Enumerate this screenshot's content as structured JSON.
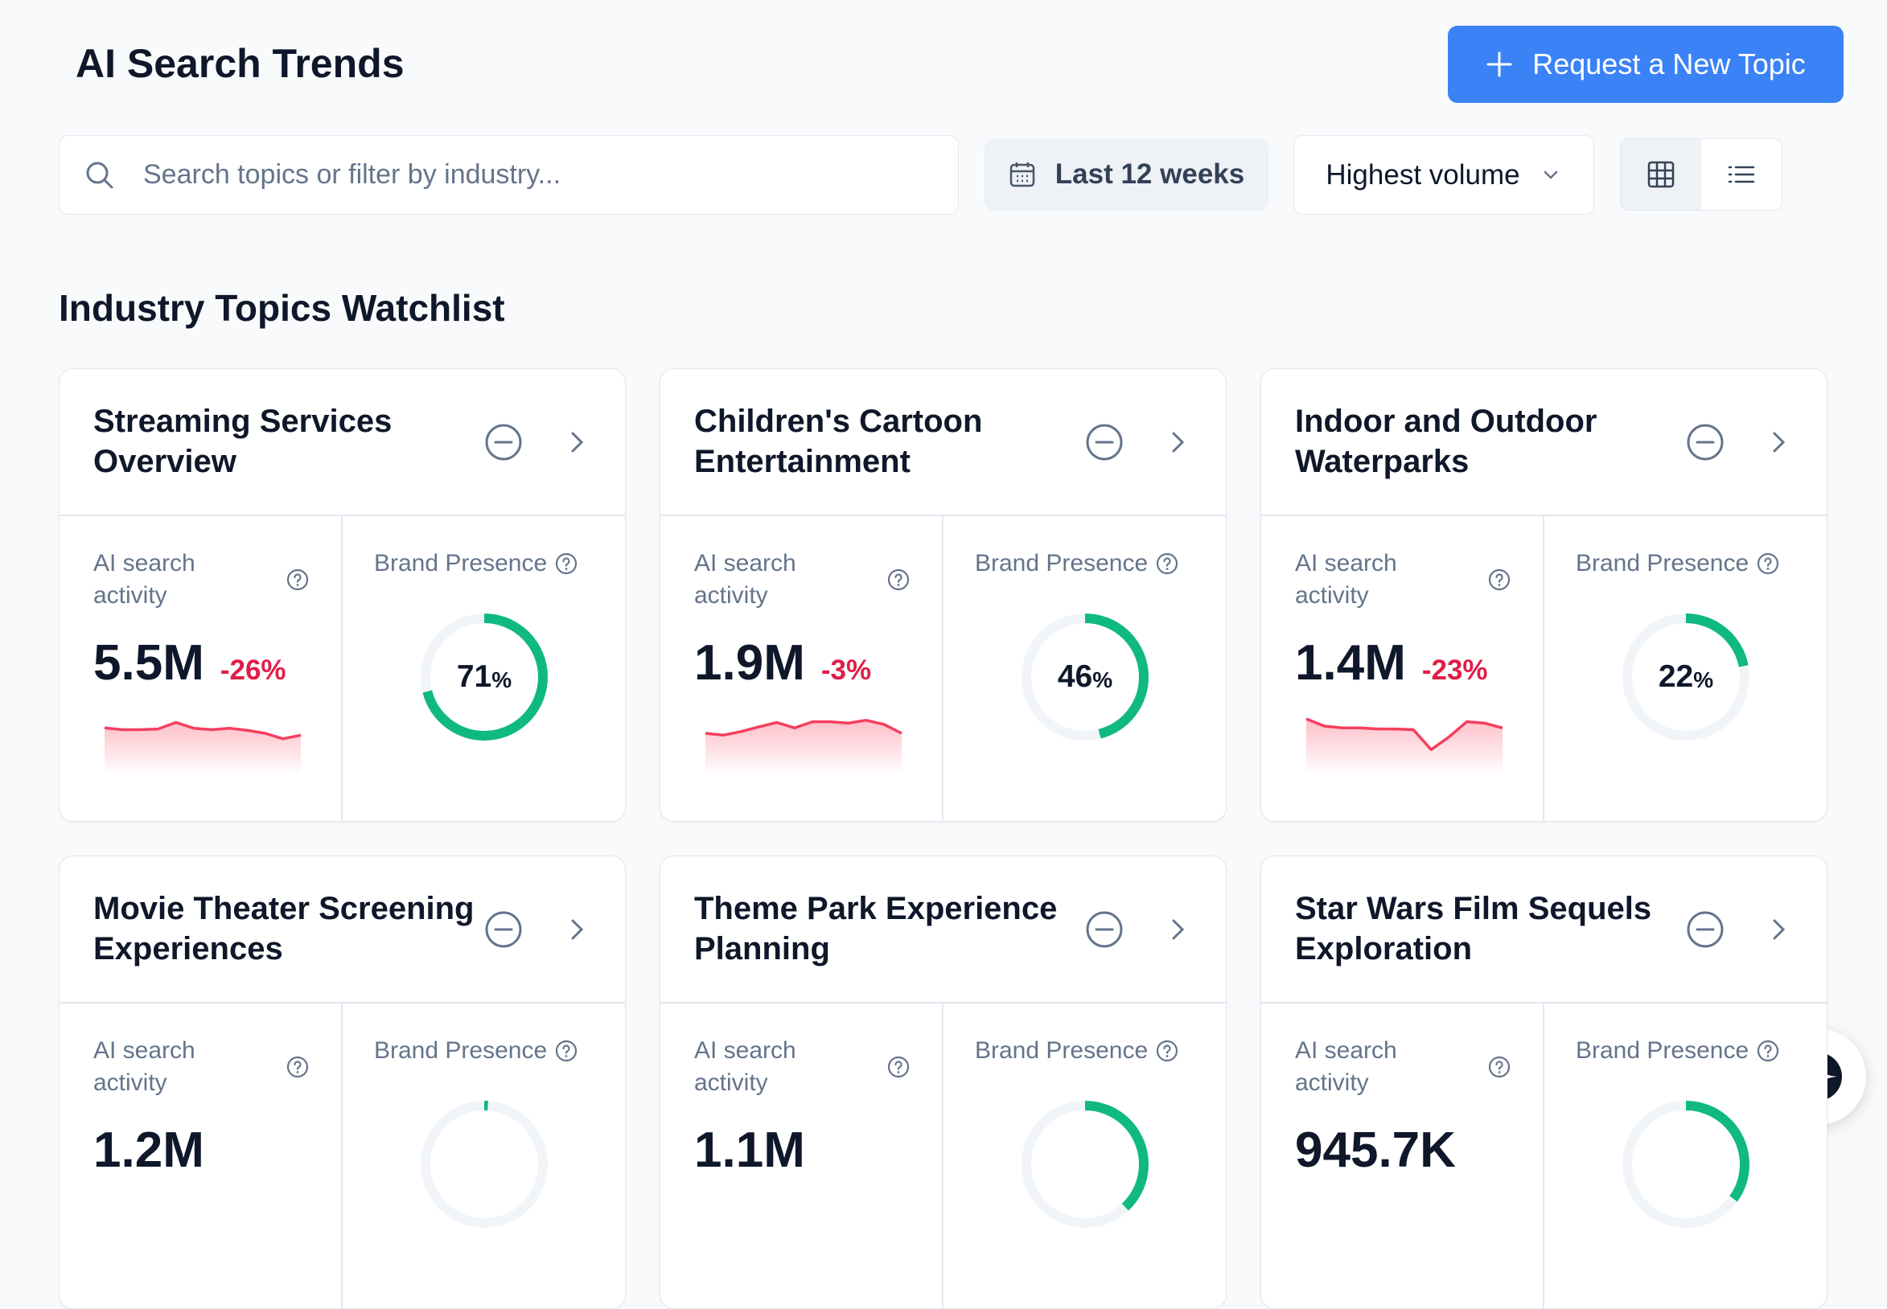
{
  "header": {
    "title": "AI Search Trends",
    "button": "Request a New Topic"
  },
  "toolbar": {
    "search_placeholder": "Search topics or filter by industry...",
    "date_range": "Last 12 weeks",
    "sort": "Highest volume"
  },
  "section_title": "Industry Topics Watchlist",
  "cards": [
    {
      "title": "Streaming Services Overview",
      "activity_label": "AI search activity",
      "volume": "5.5M",
      "change": "-26%",
      "trend": [
        75,
        70,
        70,
        72,
        90,
        74,
        70,
        74,
        68,
        60,
        45,
        55
      ],
      "presence_label": "Brand Presence",
      "presence": 71,
      "presence_unit": "%"
    },
    {
      "title": "Children's Cartoon Entertainment",
      "activity_label": "AI search activity",
      "volume": "1.9M",
      "change": "-3%",
      "trend": [
        60,
        55,
        65,
        78,
        90,
        75,
        92,
        92,
        88,
        96,
        85,
        60
      ],
      "presence_label": "Brand Presence",
      "presence": 46,
      "presence_unit": "%"
    },
    {
      "title": "Indoor and Outdoor Waterparks",
      "activity_label": "AI search activity",
      "volume": "1.4M",
      "change": "-23%",
      "trend": [
        100,
        80,
        75,
        75,
        72,
        72,
        70,
        15,
        50,
        92,
        88,
        75
      ],
      "presence_label": "Brand Presence",
      "presence": 22,
      "presence_unit": "%"
    },
    {
      "title": "Movie Theater Screening Experiences",
      "activity_label": "AI search activity",
      "volume": "1.2M",
      "presence_label": "Brand Presence",
      "presence": 1
    },
    {
      "title": "Theme Park Experience Planning",
      "activity_label": "AI search activity",
      "volume": "1.1M",
      "presence_label": "Brand Presence",
      "presence": 38
    },
    {
      "title": "Star Wars Film Sequels Exploration",
      "activity_label": "AI search activity",
      "volume": "945.7K",
      "presence_label": "Brand Presence",
      "presence": 35
    }
  ]
}
